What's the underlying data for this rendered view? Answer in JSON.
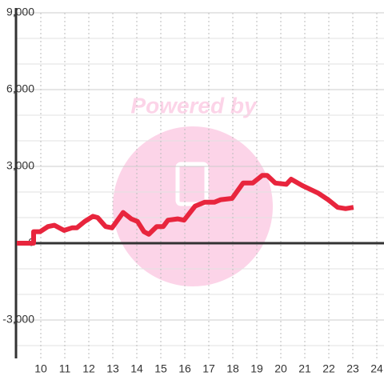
{
  "chart_data": {
    "type": "line",
    "watermark": "Powered by",
    "x": [
      9,
      9.7,
      9.7,
      9.97,
      10.3,
      10.57,
      10.97,
      11.3,
      11.5,
      11.83,
      12.17,
      12.37,
      12.7,
      12.97,
      13.43,
      13.77,
      14.03,
      14.3,
      14.5,
      14.83,
      15.1,
      15.3,
      15.7,
      15.97,
      16.43,
      16.83,
      17.23,
      17.5,
      17.97,
      18.43,
      18.83,
      19.23,
      19.43,
      19.77,
      20.23,
      20.43,
      20.9,
      21.57,
      21.97,
      22.37,
      22.7,
      23.03
    ],
    "series": [
      {
        "color": "#e8253d",
        "values": [
          0,
          0,
          450,
          450,
          650,
          700,
          500,
          600,
          600,
          850,
          1050,
          1000,
          650,
          600,
          1200,
          950,
          850,
          450,
          350,
          650,
          650,
          900,
          950,
          900,
          1450,
          1600,
          1600,
          1700,
          1750,
          2350,
          2350,
          2650,
          2650,
          2350,
          2300,
          2500,
          2250,
          1950,
          1700,
          1400,
          1350,
          1400
        ]
      }
    ],
    "xlim": [
      9,
      24.3
    ],
    "xticks": [
      10,
      11,
      12,
      13,
      14,
      15,
      16,
      17,
      18,
      19,
      20,
      21,
      22,
      23,
      24
    ],
    "ylim": [
      -4500,
      9000
    ],
    "yticks": [
      {
        "value": 9000,
        "label": "9,000"
      },
      {
        "value": 6000,
        "label": "6,000"
      },
      {
        "value": 3000,
        "label": "3,000"
      },
      0,
      {
        "value": -3000,
        "label": "-3,000"
      }
    ],
    "minor_yticks": [
      -4000,
      -2000,
      -1000,
      1000,
      2000,
      4000,
      5000,
      7000,
      8000
    ],
    "grid": true
  }
}
